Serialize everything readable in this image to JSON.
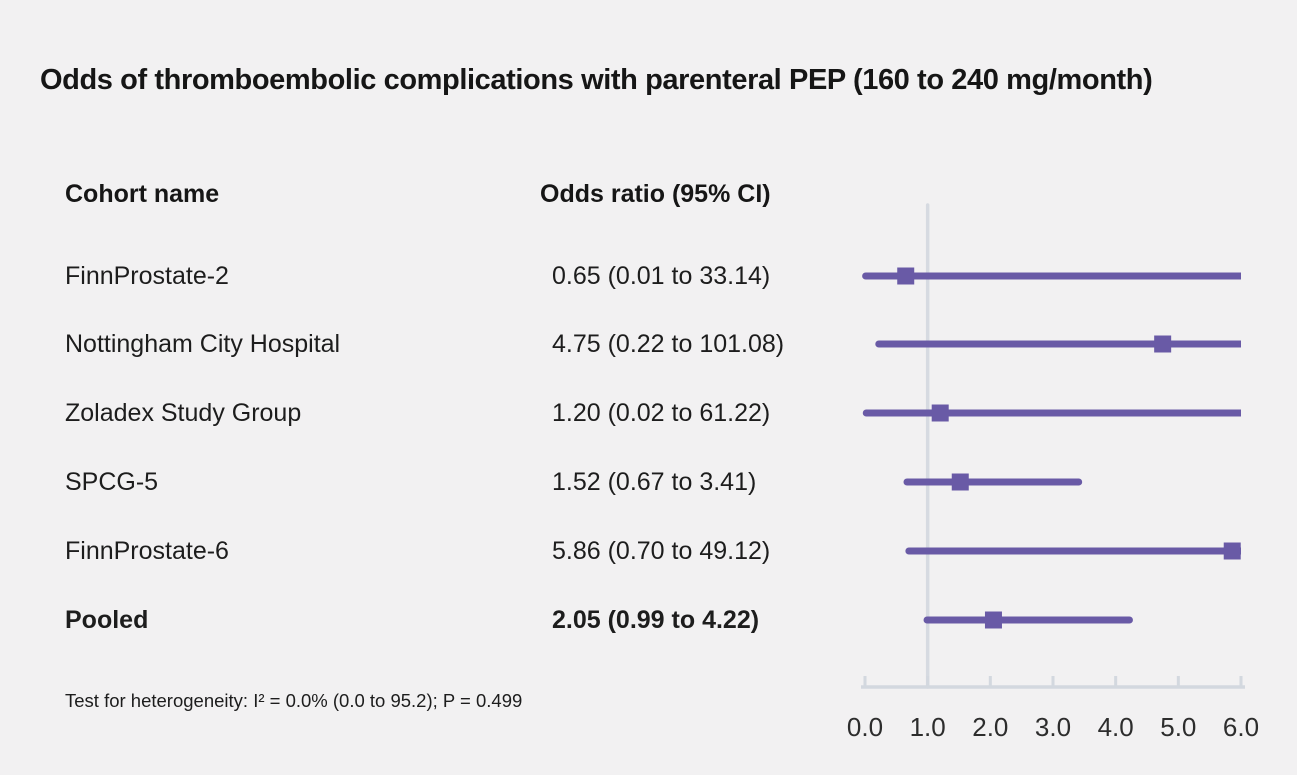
{
  "chart_data": {
    "type": "scatter",
    "subtype": "forest",
    "title": "Odds of thromboembolic complications with parenteral PEP (160 to 240 mg/month)",
    "col_headers": [
      "Cohort name",
      "Odds ratio (95% CI)"
    ],
    "rows": [
      {
        "name": "FinnProstate-2",
        "or_label": "0.65 (0.01 to 33.14)",
        "est": 0.65,
        "lo": 0.01,
        "hi": 33.14,
        "bold": false
      },
      {
        "name": "Nottingham City Hospital",
        "or_label": "4.75 (0.22 to 101.08)",
        "est": 4.75,
        "lo": 0.22,
        "hi": 101.08,
        "bold": false
      },
      {
        "name": "Zoladex Study Group",
        "or_label": "1.20 (0.02 to 61.22)",
        "est": 1.2,
        "lo": 0.02,
        "hi": 61.22,
        "bold": false
      },
      {
        "name": "SPCG-5",
        "or_label": "1.52 (0.67 to 3.41)",
        "est": 1.52,
        "lo": 0.67,
        "hi": 3.41,
        "bold": false
      },
      {
        "name": "FinnProstate-6",
        "or_label": "5.86 (0.70 to 49.12)",
        "est": 5.86,
        "lo": 0.7,
        "hi": 49.12,
        "bold": false
      },
      {
        "name": "Pooled",
        "or_label": "2.05 (0.99 to 4.22)",
        "est": 2.05,
        "lo": 0.99,
        "hi": 4.22,
        "bold": true
      }
    ],
    "axis": {
      "xmin": 0,
      "xmax": 6,
      "ticks": [
        0,
        1,
        2,
        3,
        4,
        5,
        6
      ],
      "tick_labels": [
        "0.0",
        "1.0",
        "2.0",
        "3.0",
        "4.0",
        "5.0",
        "6.0"
      ],
      "ref_line": 1.0,
      "grid": false
    },
    "footnote": "Test for heterogeneity: I² = 0.0% (0.0 to 95.2); P = 0.499",
    "colors": {
      "marker": "#695aa6",
      "ci_line": "#695aa6",
      "ref_line": "#d6dae1",
      "axis": "#d3d8df",
      "background": "#f2f1f2",
      "text": "#1a1a1a",
      "tick_label": "#2d2d2d"
    }
  }
}
